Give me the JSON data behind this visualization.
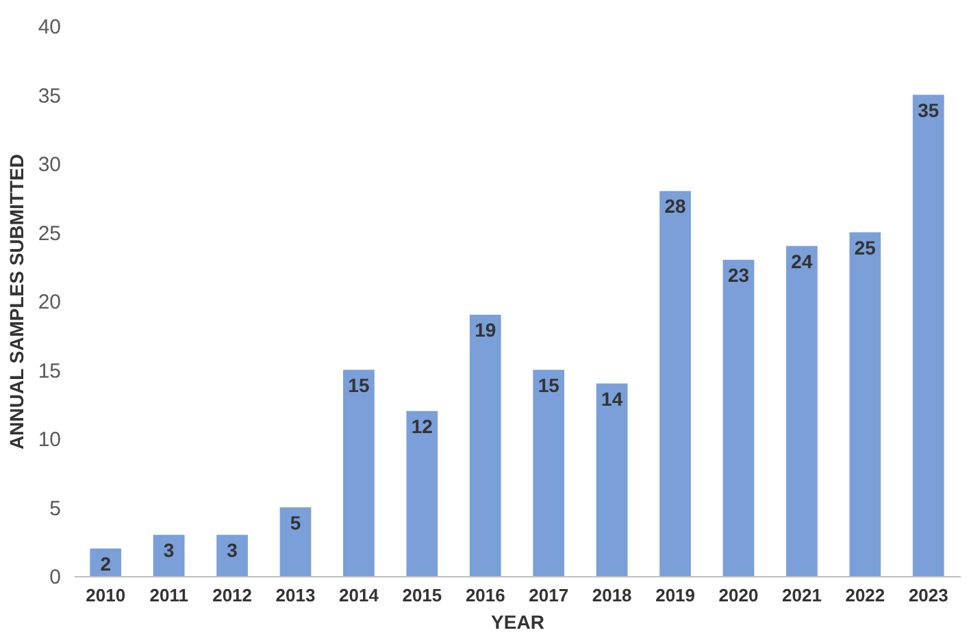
{
  "chart_data": {
    "type": "bar",
    "xlabel": "YEAR",
    "ylabel": "ANNUAL SAMPLES SUBMITTED",
    "categories": [
      "2010",
      "2011",
      "2012",
      "2013",
      "2014",
      "2015",
      "2016",
      "2017",
      "2018",
      "2019",
      "2020",
      "2021",
      "2022",
      "2023"
    ],
    "values": [
      2,
      3,
      3,
      5,
      15,
      12,
      19,
      15,
      14,
      28,
      23,
      24,
      25,
      35
    ],
    "color": "#7b9fd8",
    "ylim": [
      0,
      40
    ],
    "yticks": [
      0,
      5,
      10,
      15,
      20,
      25,
      30,
      35,
      40
    ],
    "grid": false,
    "data_labels": true
  }
}
